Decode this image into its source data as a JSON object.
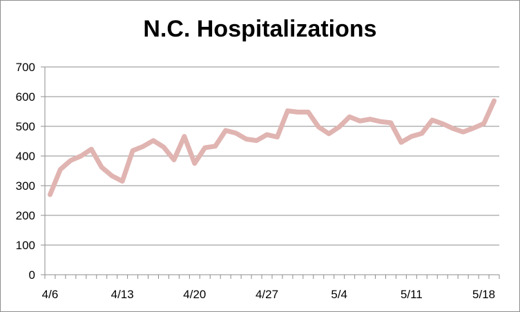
{
  "chart_data": {
    "type": "line",
    "title": "N.C. Hospitalizations",
    "xlabel": "",
    "ylabel": "",
    "ylim": [
      0,
      700
    ],
    "yticks": [
      0,
      100,
      200,
      300,
      400,
      500,
      600,
      700
    ],
    "x_tick_labels": [
      "4/6",
      "4/13",
      "4/20",
      "4/27",
      "5/4",
      "5/11",
      "5/18"
    ],
    "x_tick_every_n_points": 7,
    "grid": true,
    "legend": "none",
    "colors": {
      "line": "#e0b4b1",
      "grid": "#8c8c8c",
      "axis": "#8c8c8c"
    },
    "series": [
      {
        "values": [
          270,
          355,
          385,
          400,
          423,
          362,
          333,
          315,
          418,
          432,
          452,
          430,
          387,
          466,
          375,
          428,
          433,
          486,
          477,
          457,
          452,
          472,
          464,
          552,
          548,
          548,
          498,
          475,
          498,
          532,
          518,
          524,
          516,
          512,
          446,
          466,
          476,
          521,
          509,
          493,
          481,
          494,
          509,
          586
        ]
      }
    ]
  }
}
